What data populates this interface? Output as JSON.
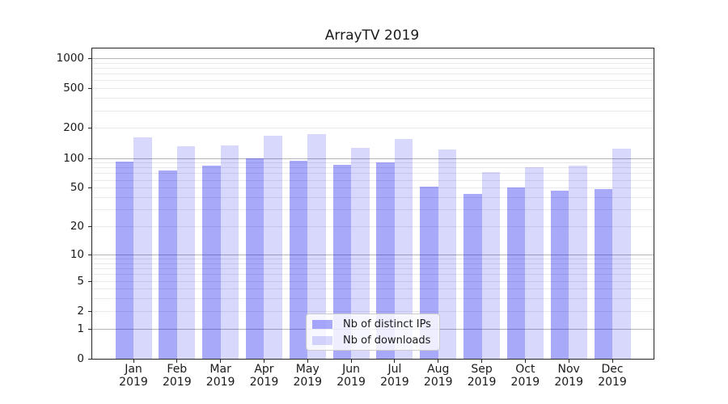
{
  "chart_data": {
    "type": "bar",
    "title": "ArrayTV 2019",
    "categories": [
      "Jan 2019",
      "Feb 2019",
      "Mar 2019",
      "Apr 2019",
      "May 2019",
      "Jun 2019",
      "Jul 2019",
      "Aug 2019",
      "Sep 2019",
      "Oct 2019",
      "Nov 2019",
      "Dec 2019"
    ],
    "series": [
      {
        "name": "Nb of distinct IPs",
        "color": "rgba(10,10,240,0.35)",
        "values": [
          92,
          76,
          84,
          100,
          95,
          86,
          91,
          52,
          44,
          51,
          47,
          49
        ]
      },
      {
        "name": "Nb of downloads",
        "color": "rgba(10,10,235,0.16)",
        "values": [
          164,
          132,
          134,
          169,
          175,
          127,
          157,
          122,
          72,
          81,
          85,
          126
        ]
      }
    ],
    "y_axis": {
      "scale": "symlog (y proportional to log10(1+v))",
      "tick_values": [
        0,
        1,
        2,
        5,
        10,
        20,
        50,
        100,
        200,
        500,
        1000
      ],
      "tick_labels": [
        "0",
        "1",
        "2",
        "5",
        "10",
        "20",
        "50",
        "100",
        "200",
        "500",
        "1000"
      ],
      "major_grid_values": [
        1,
        10,
        100,
        1000
      ],
      "range": [
        0,
        1300
      ],
      "grid": "both"
    },
    "x_axis": {
      "tick_labels_line1": [
        "Jan",
        "Feb",
        "Mar",
        "Apr",
        "May",
        "Jun",
        "Jul",
        "Aug",
        "Sep",
        "Oct",
        "Nov",
        "Dec"
      ],
      "tick_labels_line2": "2019"
    },
    "legend": {
      "position": "lower center",
      "entries": [
        "Nb of distinct IPs",
        "Nb of downloads"
      ]
    }
  },
  "colors": {
    "bar_dark": "rgba(10,10,240,0.35)",
    "bar_light": "rgba(10,10,235,0.16)",
    "major_grid": "#b6b6b6",
    "minor_grid": "#e9e9e9",
    "axis": "#262626",
    "text": "#1a1a1a",
    "legend_border": "#cccccc"
  }
}
